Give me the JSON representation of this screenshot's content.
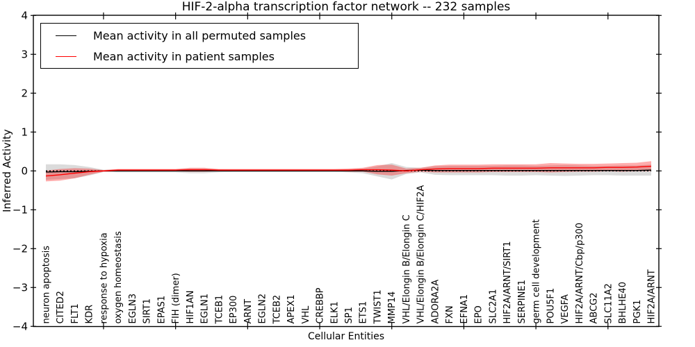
{
  "title": "HIF-2-alpha transcription factor network -- 232 samples",
  "axes": {
    "ylabel": "Inferred Activity",
    "xlabel": "Cellular Entities",
    "ytick_labels": [
      "4",
      "3",
      "2",
      "1",
      "0",
      "−1",
      "−2",
      "−3",
      "−4"
    ]
  },
  "legend": {
    "entries": [
      {
        "label": "Mean activity in all permuted samples",
        "color": "#000000"
      },
      {
        "label": "Mean activity in patient samples",
        "color": "#ff0000"
      }
    ]
  },
  "chart_data": {
    "type": "line",
    "title": "HIF-2-alpha transcription factor network -- 232 samples",
    "xlabel": "Cellular Entities",
    "ylabel": "Inferred Activity",
    "ylim": [
      -4,
      4
    ],
    "yticks": [
      4,
      3,
      2,
      1,
      0,
      -1,
      -2,
      -3,
      -4
    ],
    "grid": false,
    "legend_position": "upper left",
    "reference_line_y": 0,
    "categories": [
      "neuron apoptosis",
      "CITED2",
      "FLT1",
      "KDR",
      "response to hypoxia",
      "oxygen homeostasis",
      "EGLN3",
      "SIRT1",
      "EPAS1",
      "FIH (dimer)",
      "HIF1AN",
      "EGLN1",
      "TCEB1",
      "EP300",
      "ARNT",
      "EGLN2",
      "TCEB2",
      "APEX1",
      "VHL",
      "CREBBP",
      "ELK1",
      "SP1",
      "ETS1",
      "TWIST1",
      "MMP14",
      "VHL/Elongin B/Elongin C",
      "VHL/Elongin B/Elongin C/HIF2A",
      "ADORA2A",
      "FXN",
      "EFNA1",
      "EPO",
      "SLC2A1",
      "HIF2A/ARNT/SIRT1",
      "SERPINE1",
      "germ cell development",
      "POU5F1",
      "VEGFA",
      "HIF2A/ARNT/Cbp/p300",
      "ABCG2",
      "SLC11A2",
      "BHLHE40",
      "PGK1",
      "HIF2A/ARNT"
    ],
    "series": [
      {
        "name": "Mean activity in all permuted samples",
        "color": "#000000",
        "band_color": "#999999",
        "mean": [
          -0.03,
          -0.02,
          -0.02,
          -0.01,
          0.0,
          0.0,
          0.0,
          0.0,
          0.0,
          0.0,
          0.0,
          0.0,
          0.0,
          0.0,
          0.0,
          0.0,
          0.0,
          0.0,
          0.0,
          0.0,
          0.0,
          0.0,
          0.0,
          -0.01,
          -0.01,
          0.01,
          0.02,
          0.01,
          0.01,
          0.01,
          0.01,
          0.01,
          0.01,
          0.01,
          0.01,
          0.01,
          0.01,
          0.01,
          0.01,
          0.01,
          0.01,
          0.01,
          0.02
        ],
        "std": [
          0.2,
          0.19,
          0.17,
          0.11,
          0.03,
          0.04,
          0.04,
          0.04,
          0.04,
          0.04,
          0.06,
          0.06,
          0.04,
          0.03,
          0.03,
          0.03,
          0.03,
          0.03,
          0.03,
          0.03,
          0.03,
          0.04,
          0.06,
          0.13,
          0.21,
          0.09,
          0.06,
          0.11,
          0.12,
          0.12,
          0.12,
          0.12,
          0.13,
          0.13,
          0.12,
          0.13,
          0.14,
          0.13,
          0.12,
          0.12,
          0.13,
          0.13,
          0.14
        ]
      },
      {
        "name": "Mean activity in patient samples",
        "color": "#ff0000",
        "band_color": "#ff4d4d",
        "mean": [
          -0.13,
          -0.1,
          -0.06,
          -0.02,
          0.0,
          0.02,
          0.02,
          0.02,
          0.02,
          0.02,
          0.03,
          0.03,
          0.02,
          0.02,
          0.02,
          0.02,
          0.02,
          0.02,
          0.02,
          0.02,
          0.02,
          0.02,
          0.03,
          0.03,
          0.02,
          0.0,
          0.03,
          0.05,
          0.06,
          0.06,
          0.06,
          0.07,
          0.07,
          0.07,
          0.07,
          0.08,
          0.08,
          0.08,
          0.08,
          0.09,
          0.09,
          0.1,
          0.12
        ],
        "std": [
          0.14,
          0.15,
          0.13,
          0.08,
          0.02,
          0.03,
          0.03,
          0.03,
          0.03,
          0.03,
          0.05,
          0.05,
          0.03,
          0.03,
          0.03,
          0.03,
          0.03,
          0.03,
          0.03,
          0.03,
          0.03,
          0.04,
          0.05,
          0.12,
          0.14,
          0.06,
          0.05,
          0.09,
          0.1,
          0.1,
          0.1,
          0.1,
          0.1,
          0.1,
          0.1,
          0.12,
          0.11,
          0.1,
          0.1,
          0.1,
          0.11,
          0.11,
          0.13
        ]
      }
    ]
  }
}
